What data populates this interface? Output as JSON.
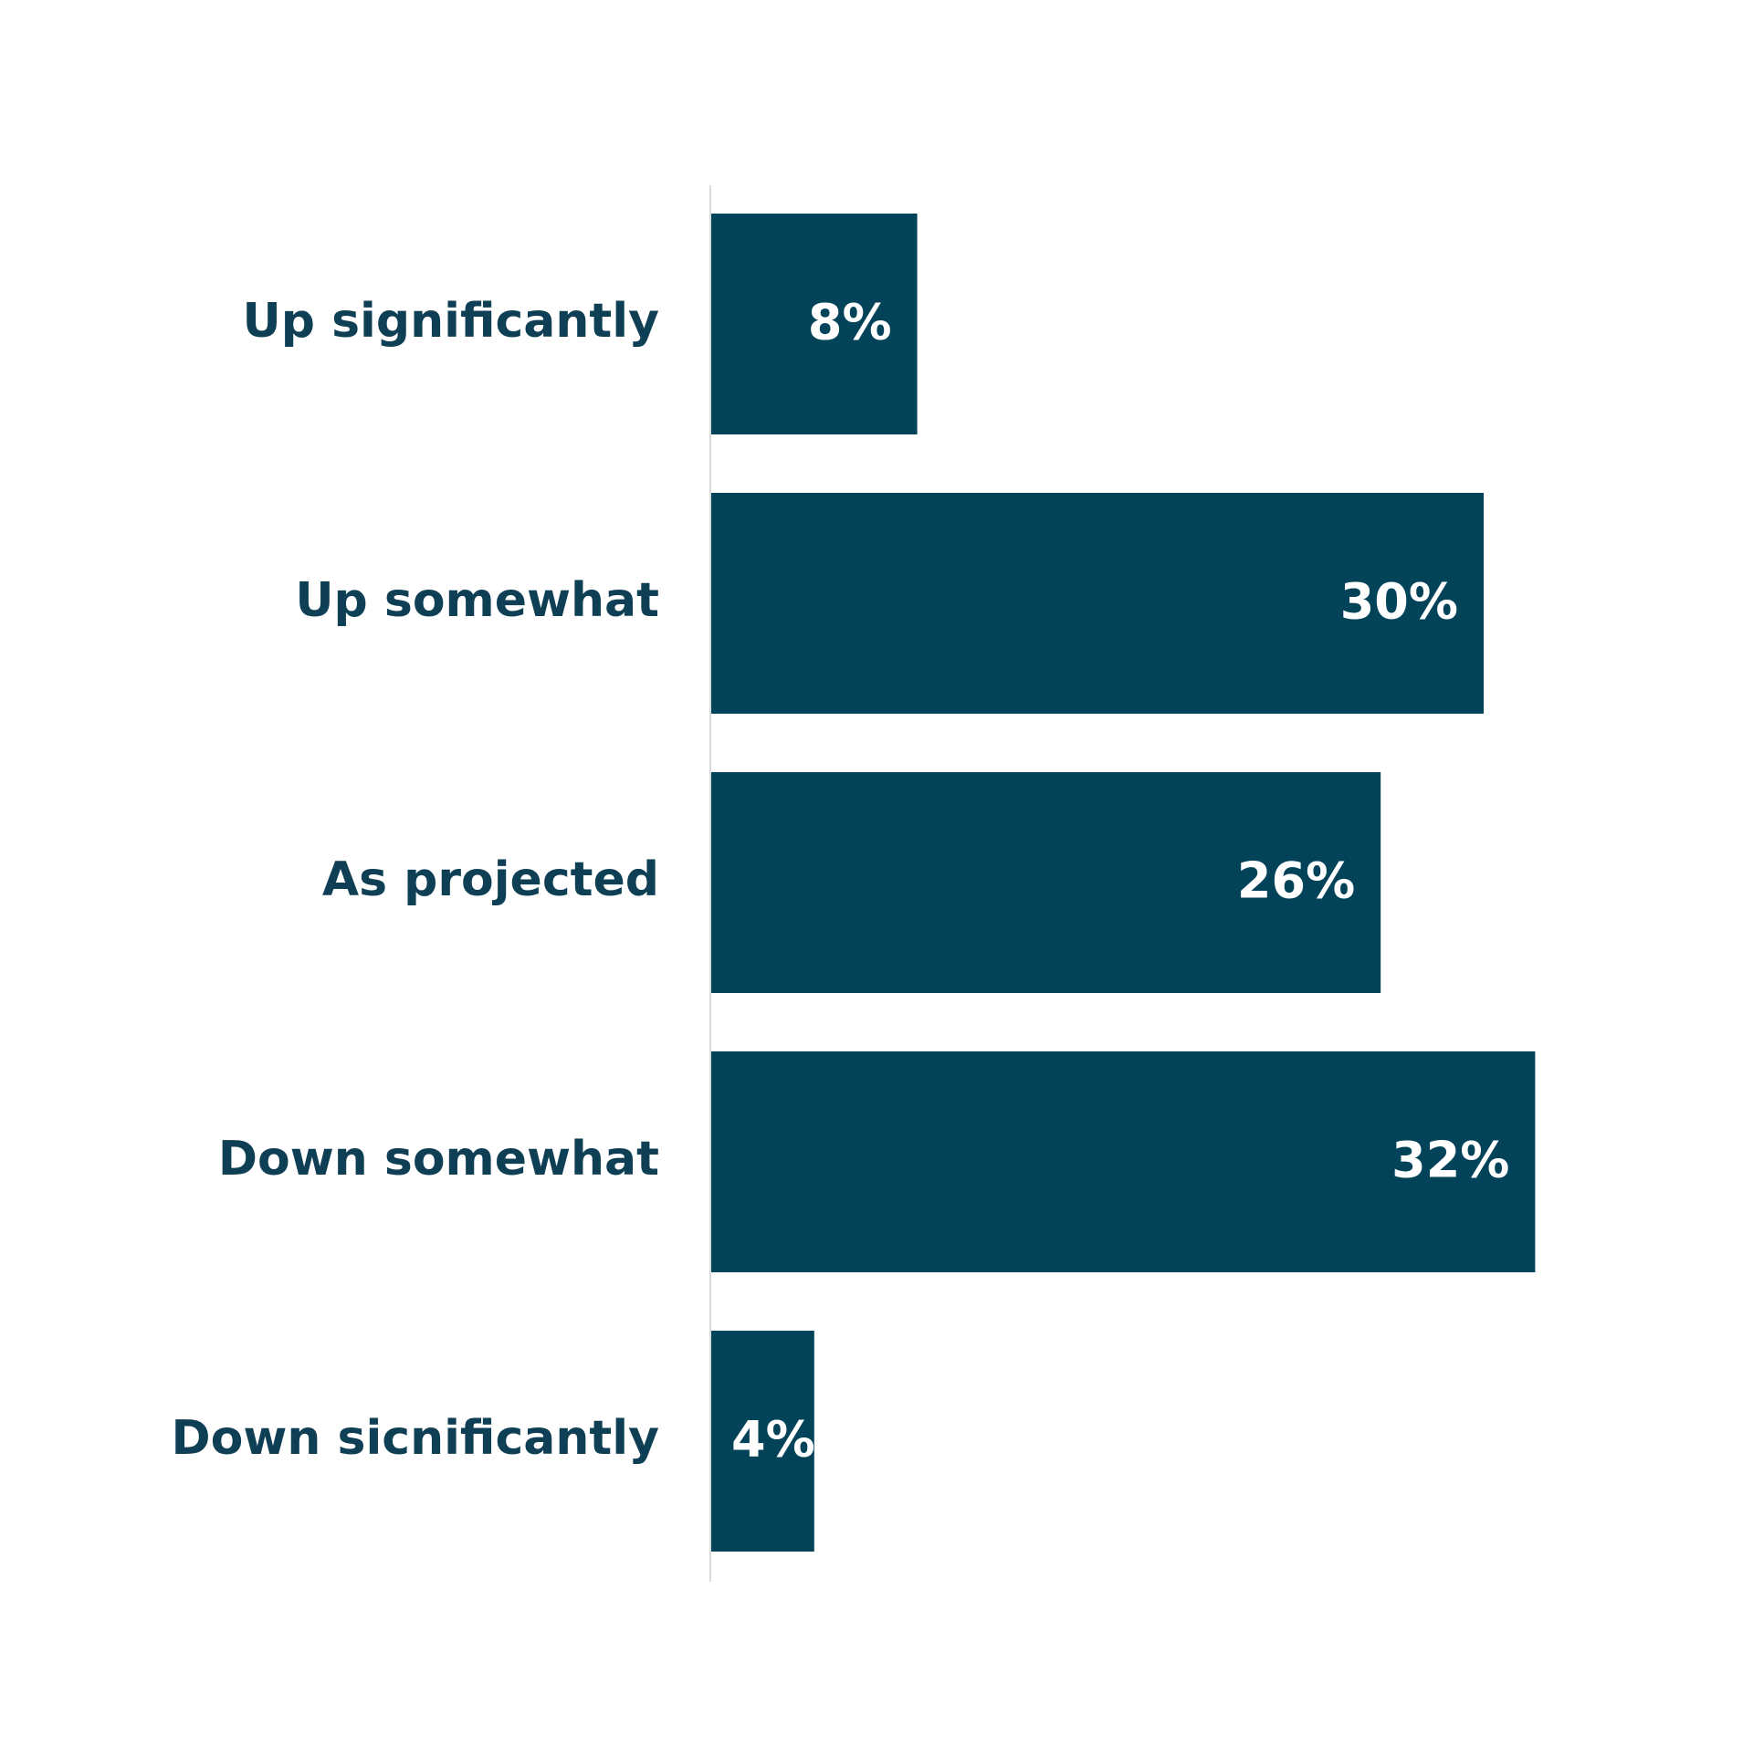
{
  "chart_data": {
    "type": "bar",
    "orientation": "horizontal",
    "categories": [
      "Up significantly",
      "Up somewhat",
      "As projected",
      "Down somewhat",
      "Down sicnificantly"
    ],
    "values": [
      8,
      30,
      26,
      32,
      4
    ],
    "value_labels": [
      "8%",
      "30%",
      "26%",
      "32%",
      "4%"
    ],
    "color": "#03435a"
  }
}
